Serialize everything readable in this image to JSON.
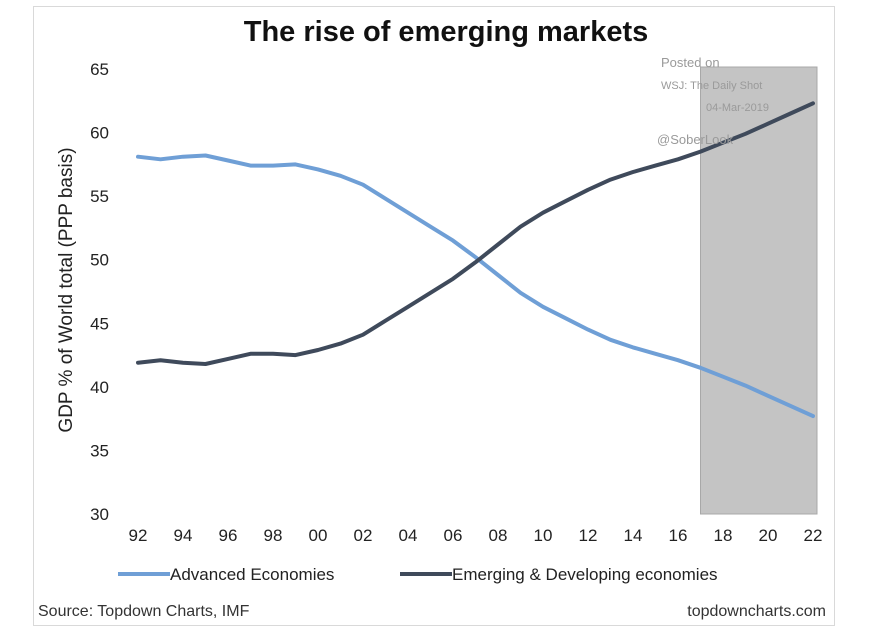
{
  "chart_data": {
    "type": "line",
    "title": "The rise of emerging markets",
    "ylabel": "GDP % of World total (PPP basis)",
    "xlabel": "",
    "ylim": [
      30,
      65
    ],
    "yticks": [
      30,
      35,
      40,
      45,
      50,
      55,
      60,
      65
    ],
    "x": [
      1992,
      1993,
      1994,
      1995,
      1996,
      1997,
      1998,
      1999,
      2000,
      2001,
      2002,
      2003,
      2004,
      2005,
      2006,
      2007,
      2008,
      2009,
      2010,
      2011,
      2012,
      2013,
      2014,
      2015,
      2016,
      2017,
      2018,
      2019,
      2020,
      2021,
      2022
    ],
    "xtick_labels": [
      "92",
      "94",
      "96",
      "98",
      "00",
      "02",
      "04",
      "06",
      "08",
      "10",
      "12",
      "14",
      "16",
      "18",
      "20",
      "22"
    ],
    "series": [
      {
        "name": "Advanced Economies",
        "color": "#6f9fd6",
        "values": [
          58.1,
          57.9,
          58.1,
          58.2,
          57.8,
          57.4,
          57.4,
          57.5,
          57.1,
          56.6,
          55.9,
          54.8,
          53.7,
          52.6,
          51.5,
          50.2,
          48.8,
          47.4,
          46.3,
          45.4,
          44.5,
          43.7,
          43.1,
          42.6,
          42.1,
          41.5,
          40.8,
          40.1,
          39.3,
          38.5,
          37.7
        ]
      },
      {
        "name": "Emerging & Developing economies",
        "color": "#3f4a5b",
        "values": [
          41.9,
          42.1,
          41.9,
          41.8,
          42.2,
          42.6,
          42.6,
          42.5,
          42.9,
          43.4,
          44.1,
          45.2,
          46.3,
          47.4,
          48.5,
          49.8,
          51.2,
          52.6,
          53.7,
          54.6,
          55.5,
          56.3,
          56.9,
          57.4,
          57.9,
          58.5,
          59.2,
          59.9,
          60.7,
          61.5,
          62.3
        ]
      }
    ],
    "shaded_region": {
      "x_start": 2017,
      "x_end": 2022,
      "color": "#c4c4c4"
    },
    "legend": "bottom",
    "grid": false
  },
  "watermark": {
    "line1": "Posted on",
    "line2": "WSJ: The Daily Shot",
    "line3": "04-Mar-2019",
    "line4": "@SoberLook"
  },
  "footer": {
    "source": "Source: Topdown Charts, IMF",
    "site": "topdowncharts.com"
  }
}
